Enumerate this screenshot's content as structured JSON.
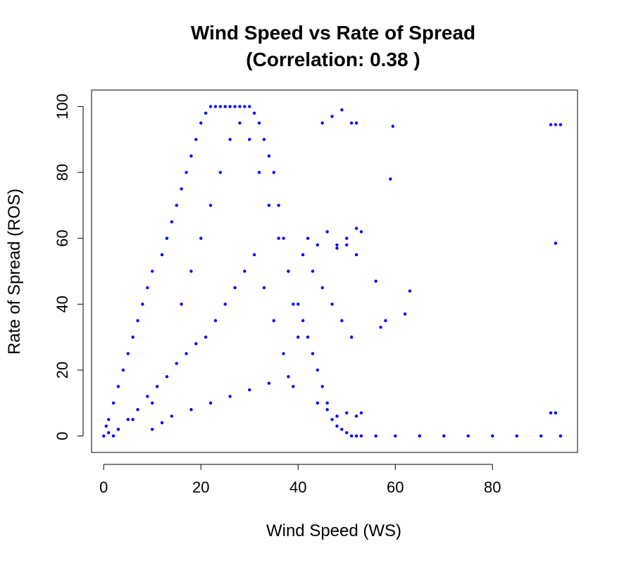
{
  "chart_data": {
    "type": "scatter",
    "title": "Wind Speed vs Rate of Spread",
    "subtitle": "(Correlation: 0.38 )",
    "xlabel": "Wind Speed (WS)",
    "ylabel": "Rate of Spread (ROS)",
    "xlim": [
      -2.5,
      97.5
    ],
    "ylim": [
      -5,
      105
    ],
    "x_ticks": [
      0,
      20,
      40,
      60,
      80
    ],
    "y_ticks": [
      0,
      20,
      40,
      60,
      80,
      100
    ],
    "grid": false,
    "legend": "none",
    "point_color": "#0000ff",
    "correlation": 0.38,
    "series": [
      {
        "x": [
          0,
          0.5,
          1,
          1,
          2,
          2,
          3,
          3,
          4,
          5,
          6,
          6,
          7,
          8,
          9,
          10,
          10,
          12,
          13,
          14,
          15,
          16,
          17,
          18,
          19,
          20,
          21,
          22,
          23,
          24,
          25,
          26,
          27,
          28,
          29,
          30,
          31,
          32,
          33,
          34,
          35,
          36,
          37,
          38,
          39,
          40,
          5,
          7,
          9,
          11,
          13,
          15,
          17,
          19,
          21,
          23,
          25,
          27,
          29,
          31,
          33,
          35,
          37,
          39,
          16,
          18,
          20,
          22,
          24,
          26,
          28,
          30,
          32,
          34,
          36,
          38,
          40,
          10,
          12,
          14,
          18,
          22,
          26,
          30,
          34,
          38,
          41,
          42,
          43,
          44,
          45,
          46,
          47,
          48,
          49,
          50,
          51,
          52,
          53,
          41,
          43,
          45,
          47,
          49,
          51,
          42,
          44,
          46,
          48,
          50,
          52,
          44,
          46,
          48,
          50,
          52,
          53,
          45,
          47,
          49,
          51,
          52,
          48,
          50,
          52,
          53,
          56,
          57,
          58,
          59,
          59.5,
          62,
          63,
          56,
          60,
          65,
          70,
          75,
          80,
          85,
          90,
          94,
          92,
          93,
          94,
          93,
          92,
          93
        ],
        "y": [
          0,
          3,
          5,
          1,
          10,
          0,
          15,
          2,
          20,
          25,
          30,
          5,
          35,
          40,
          45,
          50,
          10,
          55,
          60,
          65,
          70,
          75,
          80,
          85,
          90,
          95,
          98,
          100,
          100,
          100,
          100,
          100,
          100,
          100,
          100,
          100,
          98,
          95,
          90,
          85,
          80,
          70,
          60,
          50,
          40,
          30,
          5,
          8,
          12,
          15,
          18,
          22,
          25,
          28,
          30,
          35,
          40,
          45,
          50,
          55,
          45,
          35,
          25,
          15,
          40,
          50,
          60,
          70,
          80,
          90,
          95,
          90,
          80,
          70,
          60,
          50,
          40,
          2,
          4,
          6,
          8,
          10,
          12,
          14,
          16,
          18,
          35,
          30,
          25,
          20,
          15,
          10,
          5,
          3,
          2,
          1,
          0,
          0,
          0,
          55,
          50,
          45,
          40,
          35,
          30,
          60,
          58,
          62,
          57,
          58,
          55,
          10,
          8,
          6,
          7,
          6,
          7,
          95,
          97,
          99,
          95,
          95,
          58,
          60,
          63,
          62,
          47,
          33,
          35,
          78,
          94,
          37,
          44,
          0,
          0,
          0,
          0,
          0,
          0,
          0,
          0,
          0,
          94.5,
          94.5,
          94.5,
          58.5,
          7,
          7
        ]
      }
    ]
  }
}
